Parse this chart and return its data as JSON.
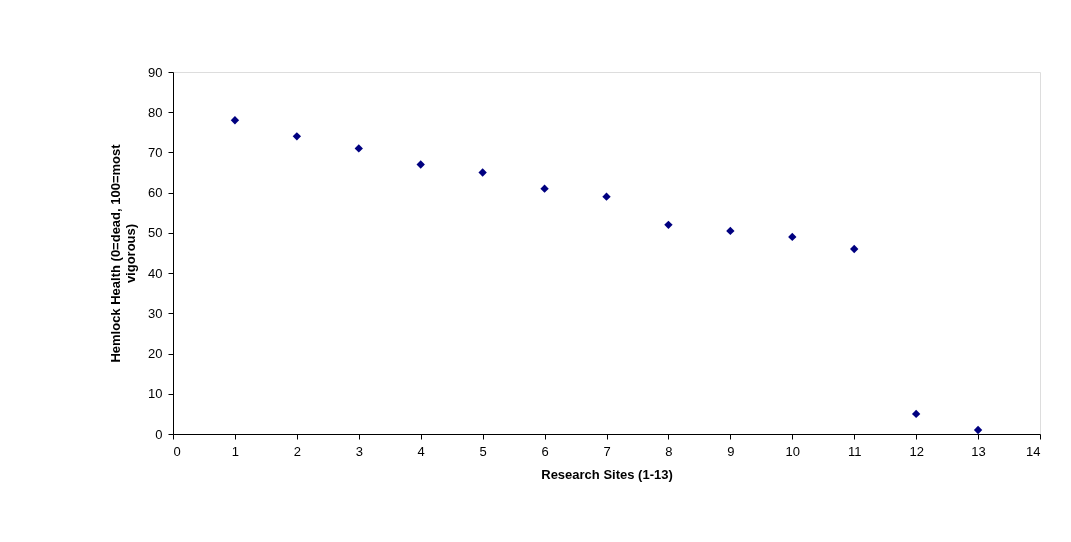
{
  "chart_data": {
    "type": "scatter",
    "xlabel": "Research Sites (1-13)",
    "ylabel": "Hemlock Health (0=dead, 100=most vigorous)",
    "x": [
      1,
      2,
      3,
      4,
      5,
      6,
      7,
      8,
      9,
      10,
      11,
      12,
      13
    ],
    "series": [
      {
        "color": "#000080",
        "values": [
          78,
          74,
          71,
          67,
          65,
          61,
          59,
          52,
          50.5,
          49,
          46,
          5,
          1
        ]
      }
    ],
    "xlim": [
      0,
      14
    ],
    "xticks": [
      0,
      1,
      2,
      3,
      4,
      5,
      6,
      7,
      8,
      9,
      10,
      11,
      12,
      13,
      14
    ],
    "ylim": [
      0,
      90
    ],
    "yticks": [
      0,
      10,
      20,
      30,
      40,
      50,
      60,
      70,
      80,
      90
    ],
    "grid": false,
    "marker": "diamond"
  }
}
